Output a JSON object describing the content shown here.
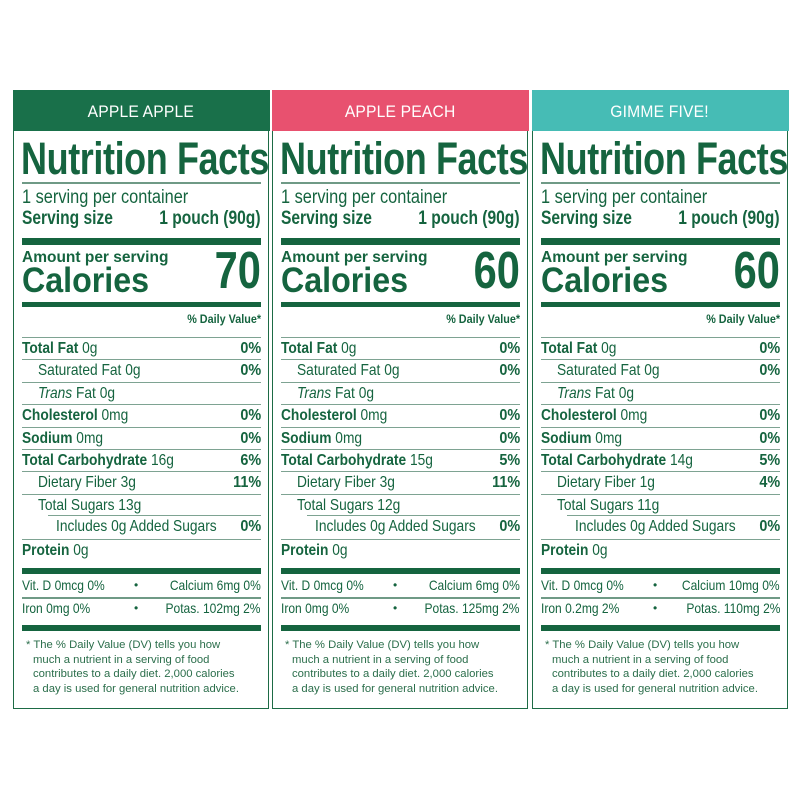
{
  "colors": {
    "text_green": "#15643f",
    "apple_apple_header": "#19704a",
    "apple_peach_header": "#e8516f",
    "gimme_five_header": "#46bcb5"
  },
  "panels": [
    {
      "flavor": "APPLE APPLE",
      "header_color": "#19704a",
      "title": "Nutrition Facts",
      "servings_per_container": "1 serving per container",
      "serving_size_label": "Serving size",
      "serving_size_value": "1 pouch (90g)",
      "amount_per_serving": "Amount per serving",
      "calories_label": "Calories",
      "calories_value": "70",
      "daily_value_header": "% Daily Value*",
      "rows": [
        {
          "bold": "Total Fat",
          "value": "0g",
          "pct": "0%"
        },
        {
          "bold": "",
          "value": "Saturated Fat 0g",
          "pct": "0%"
        },
        {
          "italic": "Trans",
          "value": "Fat 0g",
          "pct": ""
        },
        {
          "bold": "Cholesterol",
          "value": "0mg",
          "pct": "0%"
        },
        {
          "bold": "Sodium",
          "value": "0mg",
          "pct": "0%"
        },
        {
          "bold": "Total Carbohydrate",
          "value": "16g",
          "pct": "6%"
        },
        {
          "bold": "",
          "value": "Dietary Fiber 3g",
          "pct": "11%"
        },
        {
          "bold": "",
          "value": "Total Sugars 13g",
          "pct": ""
        },
        {
          "bold": "",
          "value": "Includes 0g Added Sugars",
          "pct": "0%"
        },
        {
          "bold": "Protein",
          "value": "0g",
          "pct": ""
        }
      ],
      "vitamins": [
        {
          "left": "Vit. D 0mcg 0%",
          "right": "Calcium 6mg 0%"
        },
        {
          "left": "Iron 0mg 0%",
          "right": "Potas. 102mg 2%"
        }
      ],
      "footnote": [
        "* The % Daily Value (DV) tells you how",
        "much a nutrient in a serving of food",
        "contributes to a daily diet. 2,000 calories",
        "a day is used for general nutrition advice."
      ]
    },
    {
      "flavor": "APPLE PEACH",
      "header_color": "#e8516f",
      "title": "Nutrition Facts",
      "servings_per_container": "1 serving per container",
      "serving_size_label": "Serving size",
      "serving_size_value": "1 pouch (90g)",
      "amount_per_serving": "Amount per serving",
      "calories_label": "Calories",
      "calories_value": "60",
      "daily_value_header": "% Daily Value*",
      "rows": [
        {
          "bold": "Total Fat",
          "value": "0g",
          "pct": "0%"
        },
        {
          "bold": "",
          "value": "Saturated Fat 0g",
          "pct": "0%"
        },
        {
          "italic": "Trans",
          "value": "Fat 0g",
          "pct": ""
        },
        {
          "bold": "Cholesterol",
          "value": "0mg",
          "pct": "0%"
        },
        {
          "bold": "Sodium",
          "value": "0mg",
          "pct": "0%"
        },
        {
          "bold": "Total Carbohydrate",
          "value": "15g",
          "pct": "5%"
        },
        {
          "bold": "",
          "value": "Dietary Fiber 3g",
          "pct": "11%"
        },
        {
          "bold": "",
          "value": "Total Sugars 12g",
          "pct": ""
        },
        {
          "bold": "",
          "value": "Includes 0g Added Sugars",
          "pct": "0%"
        },
        {
          "bold": "Protein",
          "value": "0g",
          "pct": ""
        }
      ],
      "vitamins": [
        {
          "left": "Vit. D 0mcg 0%",
          "right": "Calcium 6mg 0%"
        },
        {
          "left": "Iron 0mg 0%",
          "right": "Potas. 125mg 2%"
        }
      ],
      "footnote": [
        "* The % Daily Value (DV) tells you how",
        "much a nutrient in a serving of food",
        "contributes to a daily diet. 2,000 calories",
        "a day is used for general nutrition advice."
      ]
    },
    {
      "flavor": "GIMME FIVE!",
      "header_color": "#46bcb5",
      "title": "Nutrition Facts",
      "servings_per_container": "1 serving per container",
      "serving_size_label": "Serving size",
      "serving_size_value": "1 pouch (90g)",
      "amount_per_serving": "Amount per serving",
      "calories_label": "Calories",
      "calories_value": "60",
      "daily_value_header": "% Daily Value*",
      "rows": [
        {
          "bold": "Total Fat",
          "value": "0g",
          "pct": "0%"
        },
        {
          "bold": "",
          "value": "Saturated Fat 0g",
          "pct": "0%"
        },
        {
          "italic": "Trans",
          "value": "Fat 0g",
          "pct": ""
        },
        {
          "bold": "Cholesterol",
          "value": "0mg",
          "pct": "0%"
        },
        {
          "bold": "Sodium",
          "value": "0mg",
          "pct": "0%"
        },
        {
          "bold": "Total Carbohydrate",
          "value": "14g",
          "pct": "5%"
        },
        {
          "bold": "",
          "value": "Dietary Fiber 1g",
          "pct": "4%"
        },
        {
          "bold": "",
          "value": "Total Sugars 11g",
          "pct": ""
        },
        {
          "bold": "",
          "value": "Includes 0g Added Sugars",
          "pct": "0%"
        },
        {
          "bold": "Protein",
          "value": "0g",
          "pct": ""
        }
      ],
      "vitamins": [
        {
          "left": "Vit. D 0mcg 0%",
          "right": "Calcium 10mg 0%"
        },
        {
          "left": "Iron 0.2mg 2%",
          "right": "Potas. 110mg 2%"
        }
      ],
      "footnote": [
        "* The % Daily Value (DV) tells you how",
        "much a nutrient in a serving of food",
        "contributes to a daily diet. 2,000 calories",
        "a day is used for general nutrition advice."
      ]
    }
  ],
  "separator": "•"
}
